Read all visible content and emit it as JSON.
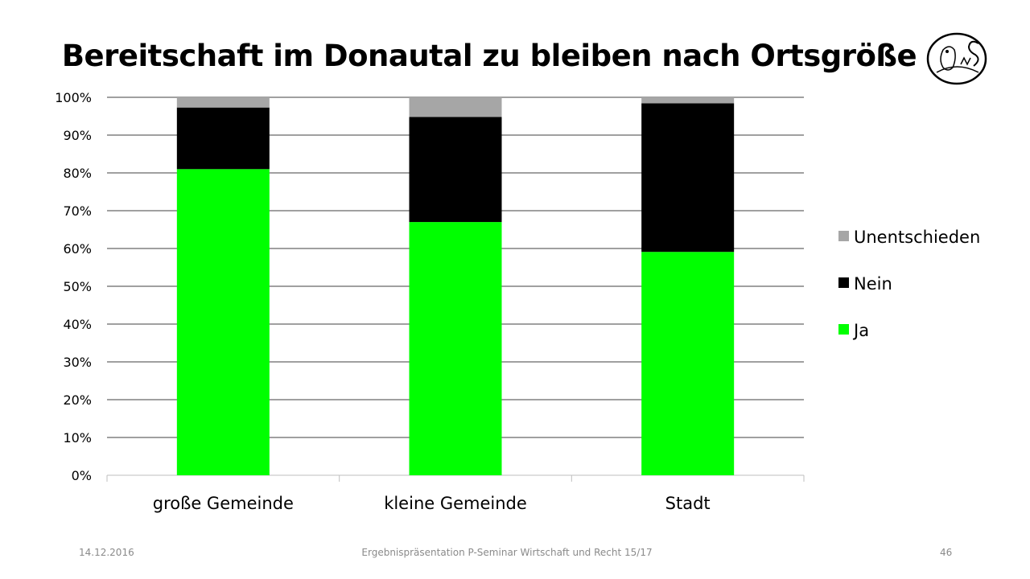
{
  "slide": {
    "title": "Bereitschaft im Donautal zu bleiben nach Ortsgröße",
    "footer_date": "14.12.2016",
    "footer_text": "Ergebnispräsentation P-Seminar Wirtschaft und Recht 15/17",
    "page_number": "46",
    "logo_icon": "owl-ms-logo-icon"
  },
  "chart_data": {
    "type": "bar",
    "stacked": true,
    "percent": true,
    "title": "Bereitschaft im Donautal zu bleiben nach Ortsgröße",
    "xlabel": "",
    "ylabel": "",
    "ylim": [
      0,
      100
    ],
    "yticks": [
      "0%",
      "10%",
      "20%",
      "30%",
      "40%",
      "50%",
      "60%",
      "70%",
      "80%",
      "90%",
      "100%"
    ],
    "grid": true,
    "legend_position": "right",
    "categories": [
      "große Gemeinde",
      "kleine Gemeinde",
      "Stadt"
    ],
    "series": [
      {
        "name": "Ja",
        "color": "#00ff00",
        "values": [
          81.0,
          67.0,
          59.1
        ]
      },
      {
        "name": "Nein",
        "color": "#000000",
        "values": [
          16.3,
          27.8,
          39.3
        ]
      },
      {
        "name": "Unentschieden",
        "color": "#a6a6a6",
        "values": [
          2.7,
          5.2,
          1.6
        ]
      }
    ]
  }
}
